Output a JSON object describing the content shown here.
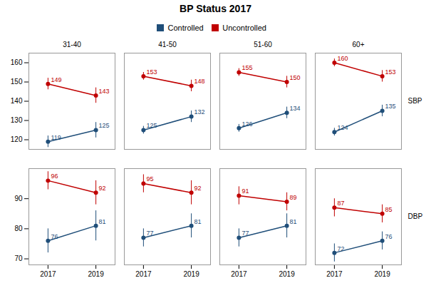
{
  "chart_data": {
    "type": "line",
    "title": "BP Status 2017",
    "legend": "top",
    "data_labels": true,
    "grid": false,
    "x": [
      2017,
      2019
    ],
    "xlim": [
      2016.2,
      2019.8
    ],
    "xticks": [
      2017,
      2019
    ],
    "columns": [
      "31-40",
      "41-50",
      "51-60",
      "60+"
    ],
    "rows": [
      {
        "label": "SBP",
        "ylim": [
          115,
          165
        ],
        "yticks": [
          120,
          130,
          140,
          150,
          160
        ],
        "series": [
          {
            "name": "Controlled",
            "color": "#1F4E79",
            "marker": "circle",
            "panels": [
              {
                "values": [
                  119,
                  125
                ],
                "errors": [
                  3,
                  4
                ]
              },
              {
                "values": [
                  125,
                  132
                ],
                "errors": [
                  2,
                  3
                ]
              },
              {
                "values": [
                  126,
                  134
                ],
                "errors": [
                  2,
                  3
                ]
              },
              {
                "values": [
                  124,
                  135
                ],
                "errors": [
                  2,
                  3
                ]
              }
            ]
          },
          {
            "name": "Uncontrolled",
            "color": "#C00000",
            "marker": "circle",
            "panels": [
              {
                "values": [
                  149,
                  143
                ],
                "errors": [
                  3,
                  4
                ]
              },
              {
                "values": [
                  153,
                  148
                ],
                "errors": [
                  2,
                  3
                ]
              },
              {
                "values": [
                  155,
                  150
                ],
                "errors": [
                  2,
                  3
                ]
              },
              {
                "values": [
                  160,
                  153
                ],
                "errors": [
                  2,
                  3
                ]
              }
            ]
          }
        ]
      },
      {
        "label": "DBP",
        "ylim": [
          68,
          100
        ],
        "yticks": [
          70,
          80,
          90
        ],
        "series": [
          {
            "name": "Controlled",
            "color": "#1F4E79",
            "marker": "circle",
            "panels": [
              {
                "values": [
                  76,
                  81
                ],
                "errors": [
                  4,
                  5
                ]
              },
              {
                "values": [
                  77,
                  81
                ],
                "errors": [
                  3,
                  4
                ]
              },
              {
                "values": [
                  77,
                  81
                ],
                "errors": [
                  3,
                  4
                ]
              },
              {
                "values": [
                  72,
                  76
                ],
                "errors": [
                  3,
                  3
                ]
              }
            ]
          },
          {
            "name": "Uncontrolled",
            "color": "#C00000",
            "marker": "circle",
            "panels": [
              {
                "values": [
                  96,
                  92
                ],
                "errors": [
                  3,
                  4
                ]
              },
              {
                "values": [
                  95,
                  92
                ],
                "errors": [
                  3,
                  4
                ]
              },
              {
                "values": [
                  91,
                  89
                ],
                "errors": [
                  3,
                  3
                ]
              },
              {
                "values": [
                  87,
                  85
                ],
                "errors": [
                  3,
                  3
                ]
              }
            ]
          }
        ]
      }
    ]
  }
}
